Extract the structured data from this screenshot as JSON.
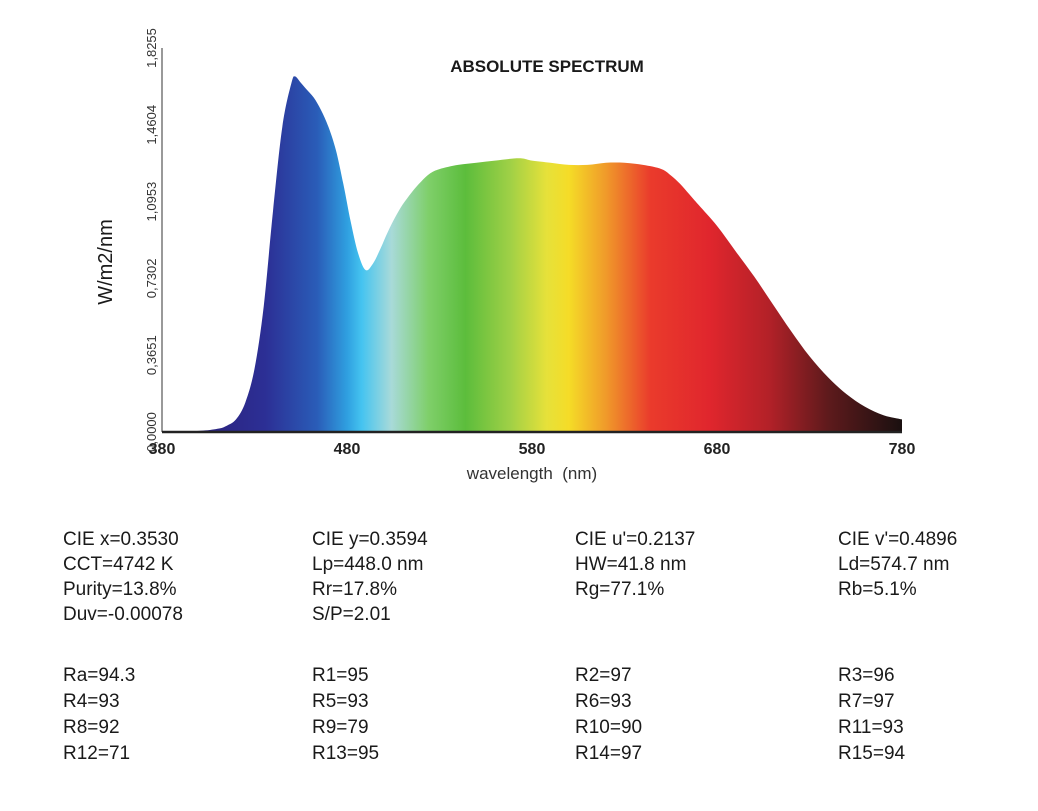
{
  "chart_data": {
    "type": "area",
    "title": "ABSOLUTE SPECTRUM",
    "xlabel": "wavelength  (nm)",
    "ylabel": "W/m2/nm",
    "xlim": [
      380,
      780
    ],
    "ylim": [
      0,
      1.8255
    ],
    "x_ticks": [
      "380",
      "480",
      "580",
      "680",
      "780"
    ],
    "y_ticks": [
      "0,0000",
      "0,3651",
      "0,7302",
      "1,0953",
      "1,4604",
      "1,8255"
    ],
    "fill": "visible-spectrum-gradient",
    "series": [
      {
        "x": [
          380,
          400,
          410,
          415,
          420,
          425,
          430,
          435,
          440,
          445,
          450,
          452,
          455,
          458,
          462,
          466,
          470,
          474,
          478,
          482,
          486,
          490,
          494,
          498,
          502,
          506,
          510,
          515,
          520,
          525,
          530,
          540,
          550,
          560,
          570,
          575,
          580,
          590,
          600,
          610,
          620,
          630,
          640,
          650,
          655,
          660,
          665,
          670,
          680,
          690,
          700,
          710,
          720,
          730,
          740,
          750,
          760,
          770,
          780
        ],
        "y": [
          0.0,
          0.005,
          0.015,
          0.03,
          0.06,
          0.14,
          0.3,
          0.6,
          1.05,
          1.45,
          1.66,
          1.69,
          1.66,
          1.63,
          1.59,
          1.53,
          1.45,
          1.34,
          1.18,
          1.0,
          0.85,
          0.77,
          0.8,
          0.87,
          0.95,
          1.02,
          1.08,
          1.14,
          1.19,
          1.23,
          1.25,
          1.27,
          1.28,
          1.29,
          1.3,
          1.3,
          1.29,
          1.28,
          1.27,
          1.27,
          1.28,
          1.28,
          1.27,
          1.25,
          1.22,
          1.18,
          1.13,
          1.08,
          0.98,
          0.86,
          0.74,
          0.61,
          0.48,
          0.36,
          0.26,
          0.18,
          0.12,
          0.08,
          0.06
        ]
      }
    ]
  },
  "params": {
    "rows": [
      [
        "CIE x=0.3530",
        "CIE y=0.3594",
        "CIE u'=0.2137",
        "CIE v'=0.4896"
      ],
      [
        "CCT=4742 K",
        "Lp=448.0 nm",
        "HW=41.8 nm",
        "Ld=574.7 nm"
      ],
      [
        "Purity=13.8%",
        "Rr=17.8%",
        "Rg=77.1%",
        "Rb=5.1%"
      ],
      [
        "Duv=-0.00078",
        "S/P=2.01",
        "",
        ""
      ]
    ],
    "cri_rows": [
      [
        "Ra=94.3",
        "R1=95",
        "R2=97",
        "R3=96"
      ],
      [
        "R4=93",
        "R5=93",
        "R6=93",
        "R7=97"
      ],
      [
        "R8=92",
        "R9=79",
        "R10=90",
        "R11=93"
      ],
      [
        "R12=71",
        "R13=95",
        "R14=97",
        "R15=94"
      ]
    ]
  }
}
